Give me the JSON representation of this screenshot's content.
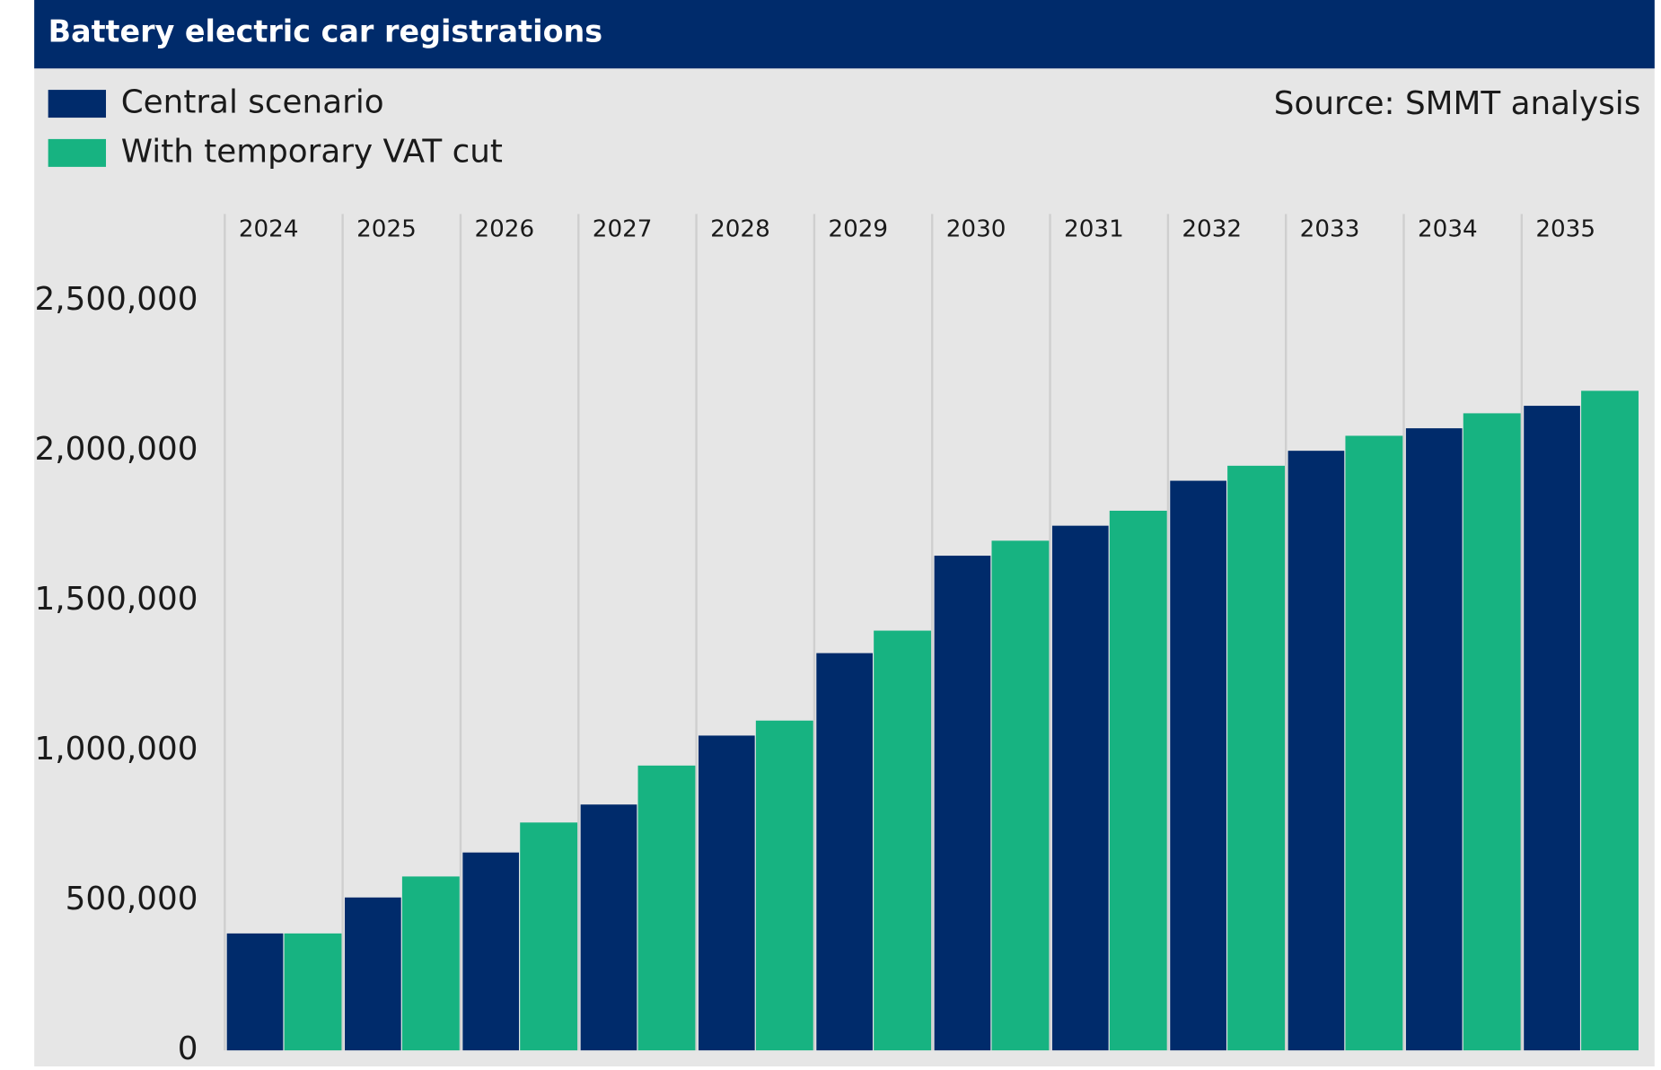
{
  "chart_data": {
    "type": "bar",
    "title": "Battery electric car registrations",
    "source": "Source: SMMT analysis",
    "categories": [
      "2024",
      "2025",
      "2026",
      "2027",
      "2028",
      "2029",
      "2030",
      "2031",
      "2032",
      "2033",
      "2034",
      "2035"
    ],
    "series": [
      {
        "name": "Central scenario",
        "color": "#002b6b",
        "values": [
          390000,
          510000,
          660000,
          820000,
          1050000,
          1325000,
          1650000,
          1750000,
          1900000,
          2000000,
          2075000,
          2150000
        ]
      },
      {
        "name": "With temporary VAT cut",
        "color": "#17b381",
        "values": [
          390000,
          580000,
          760000,
          950000,
          1100000,
          1400000,
          1700000,
          1800000,
          1950000,
          2050000,
          2125000,
          2200000
        ]
      }
    ],
    "ylim": [
      0,
      2790000
    ],
    "yticks": [
      0,
      {
        "value": 500000,
        "label": "500,000"
      },
      {
        "value": 1000000,
        "label": "1,000,000"
      },
      {
        "value": 1500000,
        "label": "1,500,000"
      },
      {
        "value": 2000000,
        "label": "2,000,000"
      },
      {
        "value": 2500000,
        "label": "2,500,000"
      }
    ],
    "legend": "top-left",
    "grid": false
  }
}
